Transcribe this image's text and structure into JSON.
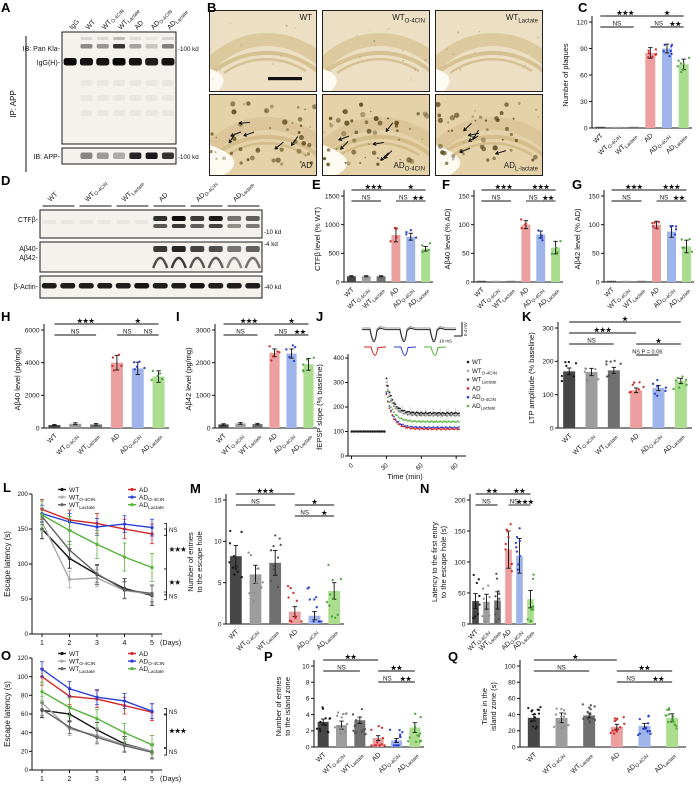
{
  "letters": {
    "A": "A",
    "B": "B",
    "C": "C",
    "D": "D",
    "E": "E",
    "F": "F",
    "G": "G",
    "H": "H",
    "I": "I",
    "J": "J",
    "K": "K",
    "L": "L",
    "M": "M",
    "N": "N",
    "O": "O",
    "P": "P",
    "Q": "Q"
  },
  "groups": [
    {
      "main": "WT",
      "sub": ""
    },
    {
      "main": "WT",
      "sub": "O-4CIN"
    },
    {
      "main": "WT",
      "sub": "Lactate"
    },
    {
      "main": "AD",
      "sub": ""
    },
    {
      "main": "AD",
      "sub": "O-4CIN"
    },
    {
      "main": "AD",
      "sub": "Lactate"
    }
  ],
  "palette": {
    "bar_fills": [
      "#464646",
      "#9d9d9d",
      "#707070",
      "#ec9f9f",
      "#9fb4ea",
      "#abdd8f"
    ],
    "dot_colors": [
      "#151515",
      "#8b8b8b",
      "#4f4f4f",
      "#d22222",
      "#2439cf",
      "#44a234"
    ],
    "line_colors": [
      "#151515",
      "#a9a9a9",
      "#636363",
      "#d22626",
      "#2b3fd6",
      "#57b33a"
    ]
  },
  "panelA": {
    "label": "A",
    "ip_label": "IP: APP",
    "lane_labels": [
      {
        "main": "IgG",
        "sub": ""
      },
      {
        "main": "WT",
        "sub": ""
      },
      {
        "main": "WT",
        "sub": "O-4CIN"
      },
      {
        "main": "WT",
        "sub": "Lactate"
      },
      {
        "main": "AD",
        "sub": ""
      },
      {
        "main": "AD",
        "sub": "O-4CIN"
      },
      {
        "main": "AD",
        "sub": "Lactate"
      }
    ],
    "row_labels": [
      "IB: Pan Kla-",
      "IgG(H)-",
      "IB: APP-"
    ],
    "marker_labels": [
      "-100 kd",
      "-100 kd"
    ],
    "bands": {
      "pan_kla": [
        0,
        0.5,
        0.45,
        0.92,
        0.38,
        0.22,
        0.55
      ],
      "igg_h": [
        1,
        0.95,
        0.95,
        1,
        0.95,
        0.9,
        0.95
      ],
      "app": [
        0,
        0.5,
        0.4,
        0.32,
        0.95,
        1,
        0.88
      ]
    }
  },
  "panelB": {
    "label": "B",
    "images": [
      {
        "main": "WT",
        "sub": "",
        "plaques": false,
        "scalebar": true
      },
      {
        "main": "WT",
        "sub": "O-4CIN",
        "plaques": false,
        "scalebar": false
      },
      {
        "main": "WT",
        "sub": "Lactate",
        "plaques": false,
        "scalebar": false
      },
      {
        "main": "AD",
        "sub": "",
        "plaques": true,
        "scalebar": false
      },
      {
        "main": "AD",
        "sub": "O-4CIN",
        "plaques": true,
        "scalebar": false
      },
      {
        "main": "AD",
        "sub": "L-lactate",
        "plaques": true,
        "scalebar": false
      }
    ]
  },
  "panelD": {
    "label": "D",
    "row_labels": [
      "CTFβ-",
      "Aβ40-",
      "Aβ42-",
      "β-Actin-"
    ],
    "marker_labels": [
      "-10 kd",
      "-4 kd",
      "-40 kd"
    ],
    "bands": {
      "ctfb": [
        0,
        0,
        0,
        0,
        0,
        0,
        0.85,
        1,
        0.8,
        0.95,
        0.55,
        0.65
      ],
      "abeta": [
        0,
        0,
        0,
        0,
        0,
        0,
        0.9,
        1,
        0.85,
        0.8,
        0.6,
        0.7
      ],
      "actin": [
        0.9,
        0.9,
        0.9,
        0.9,
        0.9,
        0.95,
        0.9,
        0.9,
        0.95,
        0.9,
        0.9,
        0.9
      ]
    }
  },
  "chart_data": [
    {
      "id": "C",
      "type": "bar",
      "ylabel": "Number of plaques",
      "ylim": [
        0,
        120
      ],
      "yticks": [
        0,
        30,
        60,
        90,
        120
      ],
      "categories": [
        "WT",
        "WT O-4CIN",
        "WT Lactate",
        "AD",
        "AD O-4CIN",
        "AD Lactate"
      ],
      "values": [
        1,
        1,
        1,
        85,
        90,
        72
      ],
      "err": [
        0,
        0,
        0,
        6,
        5,
        6
      ],
      "spread": 9,
      "dots": "colored",
      "dotN": 7,
      "sig": [
        [
          0,
          3,
          "***",
          0
        ],
        [
          0,
          2,
          "NS",
          1
        ],
        [
          3,
          5,
          "*",
          0
        ],
        [
          3,
          4,
          "NS",
          1
        ],
        [
          4,
          5,
          "**",
          1
        ]
      ]
    },
    {
      "id": "E",
      "type": "bar",
      "ylabel": "CTFβ level (% WT)",
      "ylim": [
        0,
        1500
      ],
      "yticks": [
        0,
        500,
        1000,
        1500
      ],
      "categories": [
        "WT",
        "WT O-4CIN",
        "WT Lactate",
        "AD",
        "AD O-4CIN",
        "AD Lactate"
      ],
      "values": [
        100,
        100,
        100,
        820,
        790,
        580
      ],
      "err": [
        10,
        10,
        10,
        120,
        60,
        40
      ],
      "spread": 160,
      "dots": "colored",
      "dotN": 4,
      "sig": [
        [
          0,
          3,
          "***",
          0
        ],
        [
          0,
          2,
          "NS",
          1
        ],
        [
          3,
          5,
          "*",
          0
        ],
        [
          3,
          4,
          "NS",
          1
        ],
        [
          4,
          5,
          "**",
          1
        ]
      ]
    },
    {
      "id": "F",
      "type": "bar",
      "ylabel": "Aβ40 level (% AD)",
      "ylim": [
        0,
        150
      ],
      "yticks": [
        0,
        50,
        100,
        150
      ],
      "categories": [
        "WT",
        "WT O-4CIN",
        "WT Lactate",
        "AD",
        "AD O-4CIN",
        "AD Lactate"
      ],
      "values": [
        2,
        2,
        2,
        100,
        83,
        60
      ],
      "err": [
        0,
        0,
        0,
        7,
        6,
        11
      ],
      "spread": 12,
      "dots": "colored",
      "dotN": 4,
      "sig": [
        [
          0,
          3,
          "***",
          0
        ],
        [
          0,
          2,
          "NS",
          1
        ],
        [
          3,
          5,
          "***",
          0
        ],
        [
          3,
          4,
          "NS",
          1
        ],
        [
          4,
          5,
          "**",
          1
        ]
      ]
    },
    {
      "id": "G",
      "type": "bar",
      "ylabel": "Aβ42 level (% AD)",
      "ylim": [
        0,
        150
      ],
      "yticks": [
        0,
        50,
        100,
        150
      ],
      "categories": [
        "WT",
        "WT O-4CIN",
        "WT Lactate",
        "AD",
        "AD O-4CIN",
        "AD Lactate"
      ],
      "values": [
        2,
        2,
        2,
        100,
        88,
        62
      ],
      "err": [
        0,
        0,
        0,
        6,
        10,
        11
      ],
      "spread": 13,
      "dots": "colored",
      "dotN": 5,
      "sig": [
        [
          0,
          3,
          "***",
          0
        ],
        [
          0,
          2,
          "NS",
          1
        ],
        [
          3,
          5,
          "***",
          0
        ],
        [
          3,
          4,
          "NS",
          1
        ],
        [
          4,
          5,
          "**",
          1
        ]
      ]
    },
    {
      "id": "H",
      "type": "bar",
      "ylabel": "Aβ40 level (pg/mg)",
      "ylim": [
        0,
        6000
      ],
      "yticks": [
        0,
        2000,
        4000,
        6000
      ],
      "categories": [
        "WT",
        "WT O-4CIN",
        "WT Lactate",
        "AD",
        "AD O-4CIN",
        "AD Lactate"
      ],
      "values": [
        180,
        260,
        220,
        4000,
        3650,
        3150
      ],
      "err": [
        40,
        60,
        50,
        450,
        380,
        350
      ],
      "spread": 600,
      "dots": "colored",
      "dotN": 5,
      "sig": [
        [
          0,
          3,
          "***",
          0
        ],
        [
          0,
          2,
          "NS",
          1
        ],
        [
          3,
          5,
          "*",
          0
        ],
        [
          3,
          4,
          "NS",
          1
        ],
        [
          4,
          5,
          "NS",
          1
        ]
      ]
    },
    {
      "id": "I",
      "type": "bar",
      "ylabel": "Aβ42 level (pg/mg)",
      "ylim": [
        0,
        3000
      ],
      "yticks": [
        0,
        1000,
        2000,
        3000
      ],
      "categories": [
        "WT",
        "WT O-4CIN",
        "WT Lactate",
        "AD",
        "AD O-4CIN",
        "AD Lactate"
      ],
      "values": [
        110,
        140,
        120,
        2300,
        2280,
        1950
      ],
      "err": [
        20,
        25,
        22,
        120,
        140,
        180
      ],
      "spread": 260,
      "dots": "colored",
      "dotN": 5,
      "sig": [
        [
          0,
          3,
          "***",
          0
        ],
        [
          0,
          2,
          "NS",
          1
        ],
        [
          3,
          5,
          "*",
          0
        ],
        [
          3,
          4,
          "NS",
          1
        ],
        [
          4,
          5,
          "**",
          1
        ]
      ]
    },
    {
      "id": "K",
      "type": "bar",
      "ylabel": "LTP amplitude (% baseline)",
      "ylim": [
        0,
        300
      ],
      "yticks": [
        0,
        100,
        200,
        300
      ],
      "categories": [
        "WT",
        "WT O-4CIN",
        "WT Lactate",
        "AD",
        "AD O-4CIN",
        "AD Lactate"
      ],
      "values": [
        170,
        168,
        173,
        113,
        120,
        141
      ],
      "err": [
        10,
        11,
        9,
        7,
        8,
        8
      ],
      "spread": 30,
      "dots": "all",
      "dotN": 7,
      "sig": [
        [
          0,
          5,
          "*",
          0
        ],
        [
          0,
          3,
          "***",
          1
        ],
        [
          0,
          2,
          "NS",
          2
        ],
        [
          3,
          5,
          "*",
          2
        ],
        [
          3,
          4,
          "NS P = 0.06",
          3
        ]
      ]
    },
    {
      "id": "M",
      "type": "bar",
      "ylabel": "Number of entries\nto the escape hole",
      "ylim": [
        0,
        15
      ],
      "yticks": [
        0,
        5,
        10,
        15
      ],
      "categories": [
        "WT",
        "WT O-4CIN",
        "WT Lactate",
        "AD",
        "AD O-4CIN",
        "AD Lactate"
      ],
      "values": [
        8.2,
        6,
        7.4,
        1.5,
        1,
        4
      ],
      "err": [
        1.3,
        1.1,
        1.5,
        0.6,
        0.5,
        1
      ],
      "spread": 3.5,
      "dots": "all",
      "dotN": 10,
      "sig": [
        [
          0,
          3,
          "***",
          0
        ],
        [
          0,
          2,
          "NS",
          1
        ],
        [
          3,
          5,
          "*",
          1
        ],
        [
          3,
          4,
          "NS",
          2
        ],
        [
          4,
          5,
          "*",
          2
        ]
      ]
    },
    {
      "id": "N",
      "type": "bar",
      "ylabel": "Latency to the first entry\nto the escape hole (s)",
      "ylim": [
        0,
        200
      ],
      "yticks": [
        0,
        50,
        100,
        150,
        200
      ],
      "categories": [
        "WT",
        "WT O-4CIN",
        "WT Lactate",
        "AD",
        "AD O-4CIN",
        "AD Lactate"
      ],
      "values": [
        37,
        36,
        38,
        120,
        110,
        40
      ],
      "err": [
        12,
        12,
        14,
        30,
        28,
        14
      ],
      "spread": 45,
      "dots": "all",
      "dotN": 9,
      "sig": [
        [
          0,
          3,
          "**",
          0
        ],
        [
          0,
          2,
          "NS",
          1
        ],
        [
          3,
          5,
          "**",
          0
        ],
        [
          3,
          4,
          "NS",
          1
        ],
        [
          4,
          5,
          "***",
          1
        ]
      ]
    },
    {
      "id": "P",
      "type": "bar",
      "ylabel": "Number of entries\nto the island zone",
      "ylim": [
        0,
        10
      ],
      "yticks": [
        0,
        2,
        4,
        6,
        8,
        10
      ],
      "categories": [
        "WT",
        "WT O-4CIN",
        "WT Lactate",
        "AD",
        "AD O-4CIN",
        "AD Lactate"
      ],
      "values": [
        3.1,
        2.7,
        3.3,
        1.1,
        0.8,
        2.4
      ],
      "err": [
        0.35,
        0.5,
        0.4,
        0.3,
        0.25,
        0.6
      ],
      "spread": 1.8,
      "dots": "all",
      "dotN": 12,
      "sig": [
        [
          0,
          3,
          "**",
          0
        ],
        [
          0,
          2,
          "NS",
          1
        ],
        [
          3,
          5,
          "**",
          1
        ],
        [
          3,
          4,
          "NS",
          2
        ],
        [
          4,
          5,
          "**",
          2
        ]
      ]
    },
    {
      "id": "Q",
      "type": "bar",
      "ylabel": "Time in the\nisland zone (s)",
      "ylim": [
        0,
        100
      ],
      "yticks": [
        0,
        20,
        40,
        60,
        80,
        100
      ],
      "categories": [
        "WT",
        "WT O-4CIN",
        "WT Lactate",
        "AD",
        "AD O-4CIN",
        "AD Lactate"
      ],
      "values": [
        36,
        36,
        39,
        25,
        26,
        36
      ],
      "err": [
        4,
        6,
        3,
        3,
        3,
        5
      ],
      "spread": 14,
      "dots": "all",
      "dotN": 13,
      "sig": [
        [
          0,
          3,
          "*",
          0
        ],
        [
          0,
          2,
          "NS",
          1
        ],
        [
          3,
          5,
          "**",
          1
        ],
        [
          3,
          4,
          "NS",
          2
        ],
        [
          4,
          5,
          "**",
          2
        ]
      ]
    },
    {
      "id": "J",
      "type": "ltp",
      "ylabel": "fEPSP slope (% baseline)",
      "xlabel": "Time (min)",
      "ylim": [
        0,
        400
      ],
      "yticks": [
        0,
        100,
        200,
        300,
        400
      ],
      "xticks": [
        0,
        30,
        60,
        90
      ],
      "series": [
        {
          "name": "WT",
          "plateau": 175,
          "peak": 315
        },
        {
          "name": "WT O-4CIN",
          "plateau": 170,
          "peak": 300
        },
        {
          "name": "WT Lactate",
          "plateau": 166,
          "peak": 290
        },
        {
          "name": "AD",
          "plateau": 110,
          "peak": 250
        },
        {
          "name": "AD O-4CIN",
          "plateau": 116,
          "peak": 255
        },
        {
          "name": "AD Lactate",
          "plateau": 140,
          "peak": 265
        }
      ],
      "scale_v": "0.4 mV",
      "scale_h": "10 mS"
    },
    {
      "id": "L",
      "type": "days",
      "ylabel": "Escape latency (s)",
      "x_suffix": "(Days)",
      "xticks": [
        1,
        2,
        3,
        4,
        5
      ],
      "ylim": [
        0,
        200
      ],
      "yticks": [
        0,
        50,
        100,
        150,
        200
      ],
      "series": [
        {
          "name": "WT",
          "values": [
            150,
            108,
            85,
            65,
            55
          ],
          "err": 14
        },
        {
          "name": "WT O-4CIN",
          "values": [
            160,
            78,
            80,
            62,
            57
          ],
          "err": 12
        },
        {
          "name": "WT Lactate",
          "values": [
            168,
            120,
            86,
            63,
            58
          ],
          "err": 12
        },
        {
          "name": "AD",
          "values": [
            178,
            163,
            158,
            150,
            143
          ],
          "err": 14
        },
        {
          "name": "AD O-4CIN",
          "values": [
            172,
            160,
            153,
            157,
            152
          ],
          "err": 12
        },
        {
          "name": "AD Lactate",
          "values": [
            170,
            148,
            128,
            110,
            95
          ],
          "err": 20
        }
      ],
      "annotations": [
        {
          "y1": 141,
          "y2": 158,
          "label": "NS"
        },
        {
          "y1": 93,
          "y2": 150,
          "label": "***"
        },
        {
          "y1": 56,
          "y2": 93,
          "label": "**"
        },
        {
          "y1": 49,
          "y2": 60,
          "label": "NS"
        }
      ]
    },
    {
      "id": "O",
      "type": "days",
      "ylabel": "Escape latency (s)",
      "x_suffix": "(Days)",
      "xticks": [
        1,
        2,
        3,
        4,
        5
      ],
      "ylim": [
        0,
        120
      ],
      "yticks": [
        0,
        20,
        40,
        60,
        80,
        100,
        120
      ],
      "series": [
        {
          "name": "WT",
          "values": [
            64,
            60,
            43,
            28,
            20
          ],
          "err": 8
        },
        {
          "name": "WT O-4CIN",
          "values": [
            72,
            44,
            37,
            27,
            20
          ],
          "err": 7
        },
        {
          "name": "WT Lactate",
          "values": [
            65,
            46,
            35,
            26,
            19
          ],
          "err": 7
        },
        {
          "name": "AD",
          "values": [
            100,
            79,
            76,
            69,
            62
          ],
          "err": 9
        },
        {
          "name": "AD O-4CIN",
          "values": [
            108,
            87,
            78,
            74,
            63
          ],
          "err": 8
        },
        {
          "name": "AD Lactate",
          "values": [
            84,
            67,
            55,
            40,
            27
          ],
          "err": 10
        }
      ],
      "annotations": [
        {
          "y1": 59,
          "y2": 66,
          "label": "NS"
        },
        {
          "y1": 24,
          "y2": 60,
          "label": "***"
        },
        {
          "y1": 16,
          "y2": 23,
          "label": "NS"
        }
      ]
    }
  ]
}
